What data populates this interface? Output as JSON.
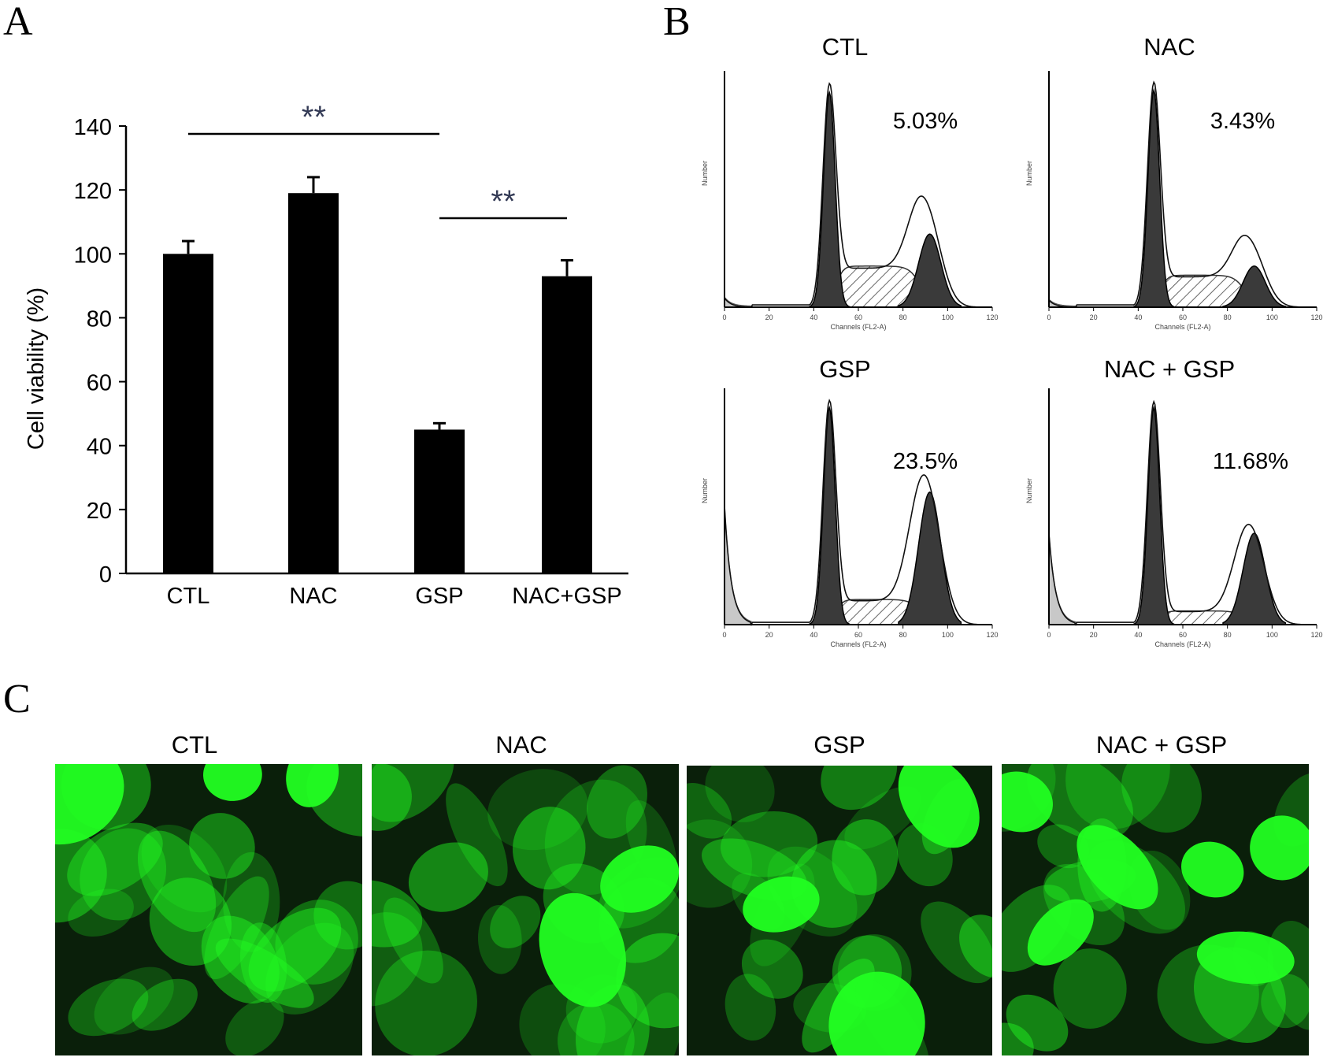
{
  "panels": {
    "a": "A",
    "b": "B",
    "c": "C"
  },
  "chart_data": [
    {
      "type": "bar",
      "categories": [
        "CTL",
        "NAC",
        "GSP",
        "NAC+GSP"
      ],
      "values": [
        100,
        119,
        45,
        93
      ],
      "errors": [
        4,
        5,
        2,
        5
      ],
      "ylabel": "Cell viability (%)",
      "ylim": [
        0,
        140
      ],
      "yticks": [
        0,
        20,
        40,
        60,
        80,
        100,
        120,
        140
      ],
      "significance": [
        {
          "from": "CTL",
          "to": "GSP",
          "label": "**"
        },
        {
          "from": "GSP",
          "to": "NAC+GSP",
          "label": "**"
        }
      ],
      "color": "#000000"
    },
    {
      "type": "area",
      "plots": [
        {
          "title": "CTL",
          "percent": "5.03%"
        },
        {
          "title": "NAC",
          "percent": "3.43%"
        },
        {
          "title": "GSP",
          "percent": "23.5%"
        },
        {
          "title": "NAC + GSP",
          "percent": "11.68%"
        }
      ],
      "xlabel": "Channels (FL2-A)",
      "ylabel": "Number",
      "xticks": [
        0,
        20,
        40,
        60,
        80,
        100,
        120
      ]
    }
  ],
  "images": [
    {
      "title": "CTL"
    },
    {
      "title": "NAC"
    },
    {
      "title": "GSP"
    },
    {
      "title": "NAC + GSP"
    }
  ],
  "colors": {
    "fluorescence": "#22ff22",
    "background": "#0a1f0a",
    "peak_fill": "#3a3a3a",
    "debris_fill": "#c8c8c8"
  }
}
